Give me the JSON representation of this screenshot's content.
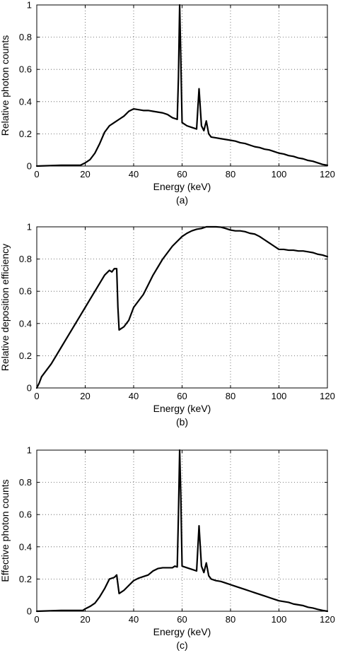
{
  "chart_data": [
    {
      "type": "line",
      "panel_label": "(a)",
      "xlabel": "Energy (keV)",
      "ylabel": "Relative photon counts",
      "xlim": [
        0,
        120
      ],
      "ylim": [
        0,
        1
      ],
      "xticks": [
        0,
        20,
        40,
        60,
        80,
        100,
        120
      ],
      "xtick_labels": [
        "0",
        "20",
        "40",
        "60",
        "80",
        "100",
        "120"
      ],
      "yticks": [
        0,
        0.2,
        0.4,
        0.6,
        0.8,
        1
      ],
      "ytick_labels": [
        "0",
        "0.2",
        "0.4",
        "0.6",
        "0.8",
        "1"
      ],
      "grid": true,
      "series": [
        {
          "x": [
            0,
            10,
            18,
            20,
            22,
            24,
            26,
            28,
            30,
            32,
            34,
            36,
            38,
            40,
            42,
            44,
            46,
            48,
            50,
            52,
            54,
            56,
            58,
            58.5,
            59,
            59.5,
            60,
            62,
            64,
            66,
            67,
            68,
            69,
            70,
            71,
            72,
            74,
            76,
            78,
            80,
            82,
            84,
            86,
            88,
            90,
            92,
            94,
            96,
            98,
            100,
            102,
            104,
            106,
            108,
            110,
            112,
            114,
            116,
            118,
            120
          ],
          "y": [
            0,
            0.005,
            0.005,
            0.02,
            0.04,
            0.08,
            0.14,
            0.21,
            0.25,
            0.27,
            0.29,
            0.31,
            0.34,
            0.355,
            0.35,
            0.345,
            0.345,
            0.34,
            0.335,
            0.33,
            0.32,
            0.3,
            0.29,
            0.55,
            1.0,
            0.65,
            0.27,
            0.25,
            0.24,
            0.23,
            0.48,
            0.25,
            0.22,
            0.28,
            0.2,
            0.18,
            0.175,
            0.17,
            0.165,
            0.16,
            0.155,
            0.145,
            0.14,
            0.13,
            0.12,
            0.115,
            0.105,
            0.1,
            0.09,
            0.08,
            0.075,
            0.065,
            0.06,
            0.05,
            0.045,
            0.035,
            0.03,
            0.02,
            0.01,
            0.005
          ]
        }
      ]
    },
    {
      "type": "line",
      "panel_label": "(b)",
      "xlabel": "Energy (keV)",
      "ylabel": "Relative deposition efficiency",
      "xlim": [
        0,
        120
      ],
      "ylim": [
        0,
        1
      ],
      "xticks": [
        0,
        20,
        40,
        60,
        80,
        100,
        120
      ],
      "xtick_labels": [
        "0",
        "20",
        "40",
        "60",
        "80",
        "100",
        "120"
      ],
      "yticks": [
        0,
        0.2,
        0.4,
        0.6,
        0.8,
        1
      ],
      "ytick_labels": [
        "0",
        "0.2",
        "0.4",
        "0.6",
        "0.8",
        "1"
      ],
      "grid": true,
      "series": [
        {
          "x": [
            0,
            1,
            2,
            4,
            6,
            8,
            10,
            12,
            14,
            16,
            18,
            20,
            22,
            24,
            26,
            28,
            30,
            31,
            32,
            33,
            33.5,
            34,
            36,
            38,
            40,
            42,
            44,
            46,
            48,
            50,
            52,
            54,
            56,
            58,
            60,
            62,
            64,
            66,
            68,
            70,
            72,
            74,
            76,
            78,
            80,
            82,
            84,
            86,
            88,
            90,
            92,
            94,
            96,
            98,
            100,
            102,
            104,
            106,
            108,
            110,
            112,
            114,
            116,
            118,
            120
          ],
          "y": [
            0,
            0.03,
            0.07,
            0.11,
            0.15,
            0.2,
            0.25,
            0.3,
            0.35,
            0.4,
            0.45,
            0.5,
            0.55,
            0.6,
            0.65,
            0.7,
            0.73,
            0.72,
            0.74,
            0.74,
            0.5,
            0.36,
            0.38,
            0.42,
            0.5,
            0.54,
            0.58,
            0.64,
            0.7,
            0.75,
            0.8,
            0.84,
            0.88,
            0.91,
            0.94,
            0.96,
            0.975,
            0.985,
            0.99,
            1.0,
            1.0,
            1.0,
            0.998,
            0.99,
            0.98,
            0.975,
            0.975,
            0.97,
            0.96,
            0.955,
            0.94,
            0.92,
            0.9,
            0.88,
            0.86,
            0.86,
            0.855,
            0.855,
            0.85,
            0.85,
            0.845,
            0.84,
            0.83,
            0.825,
            0.815
          ]
        }
      ]
    },
    {
      "type": "line",
      "panel_label": "(c)",
      "xlabel": "Energy (keV)",
      "ylabel": "Effective photon counts",
      "xlim": [
        0,
        120
      ],
      "ylim": [
        0,
        1
      ],
      "xticks": [
        0,
        20,
        40,
        60,
        80,
        100,
        120
      ],
      "xtick_labels": [
        "0",
        "20",
        "40",
        "60",
        "80",
        "100",
        "120"
      ],
      "yticks": [
        0,
        0.2,
        0.4,
        0.6,
        0.8,
        1
      ],
      "ytick_labels": [
        "0",
        "0.2",
        "0.4",
        "0.6",
        "0.8",
        "1"
      ],
      "grid": true,
      "series": [
        {
          "x": [
            0,
            10,
            19,
            20,
            22,
            24,
            26,
            28,
            30,
            32,
            33,
            34,
            36,
            38,
            40,
            42,
            44,
            46,
            48,
            50,
            52,
            54,
            56,
            57,
            58,
            58.5,
            59,
            59.5,
            60,
            62,
            64,
            66,
            67,
            68,
            69,
            70,
            71,
            72,
            74,
            76,
            78,
            80,
            82,
            84,
            86,
            88,
            90,
            92,
            94,
            96,
            98,
            100,
            102,
            104,
            106,
            108,
            110,
            112,
            114,
            116,
            118,
            120
          ],
          "y": [
            0,
            0.005,
            0.005,
            0.015,
            0.03,
            0.05,
            0.09,
            0.14,
            0.2,
            0.21,
            0.225,
            0.11,
            0.13,
            0.16,
            0.19,
            0.205,
            0.215,
            0.225,
            0.25,
            0.265,
            0.27,
            0.27,
            0.27,
            0.28,
            0.275,
            0.6,
            1.0,
            0.7,
            0.28,
            0.27,
            0.26,
            0.25,
            0.53,
            0.28,
            0.24,
            0.3,
            0.22,
            0.2,
            0.19,
            0.185,
            0.175,
            0.165,
            0.155,
            0.145,
            0.135,
            0.125,
            0.115,
            0.105,
            0.095,
            0.085,
            0.075,
            0.065,
            0.06,
            0.055,
            0.045,
            0.04,
            0.035,
            0.025,
            0.02,
            0.012,
            0.005,
            0
          ]
        }
      ]
    }
  ]
}
